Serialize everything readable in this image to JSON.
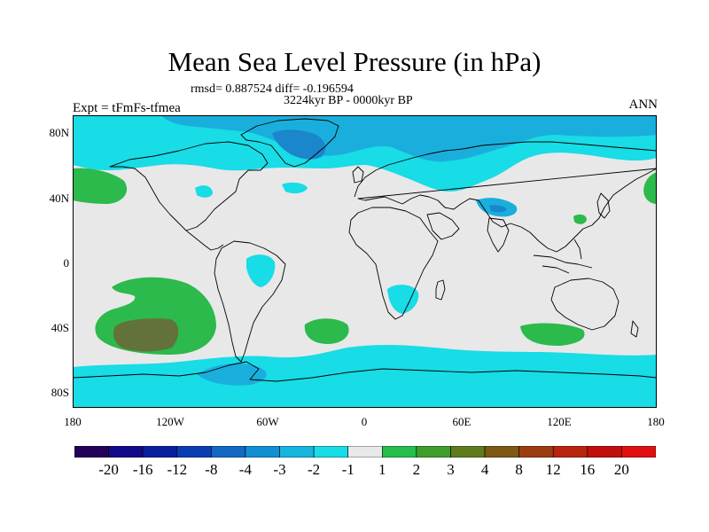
{
  "header": {
    "title": "Mean Sea Level Pressure (in hPa)",
    "stats": "rmsd= 0.887524 diff= -0.196594",
    "period": "3224kyr BP - 0000kyr BP",
    "experiment": "Expt = tFmFs-tfmea",
    "season": "ANN"
  },
  "axes": {
    "y_labels": [
      "80N",
      "40N",
      "0",
      "40S",
      "80S"
    ],
    "x_labels": [
      "180",
      "120W",
      "60W",
      "0",
      "60E",
      "120E",
      "180"
    ]
  },
  "colorbar": {
    "labels": [
      "-20",
      "-16",
      "-12",
      "-8",
      "-4",
      "-3",
      "-2",
      "-1",
      "1",
      "2",
      "3",
      "4",
      "8",
      "12",
      "16",
      "20"
    ],
    "colors": [
      "#23005a",
      "#120a86",
      "#0a1f9e",
      "#0b3db2",
      "#1268c2",
      "#128fd2",
      "#18b5df",
      "#18dce6",
      "#e8e8e8",
      "#27be4b",
      "#3e9e2c",
      "#5e7b1e",
      "#7c5a14",
      "#9b3d10",
      "#b8240e",
      "#c00f0a",
      "#e01010"
    ]
  },
  "map_colors": {
    "ocean_neutral": "#e8e8e8",
    "neg1": "#18dce6",
    "neg2": "#1aaedc",
    "neg3": "#1a86cc",
    "pos1": "#2bba4b",
    "pos2": "#62723a",
    "coast": "#000000"
  }
}
